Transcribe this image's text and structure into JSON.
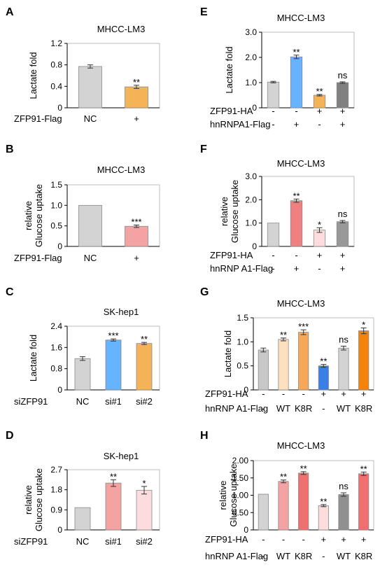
{
  "figure": {
    "panels": [
      {
        "letter": "A",
        "title": "MHCC-LM3",
        "ylabel": "Lactate fold",
        "rowlabels": [
          "ZFP91-Flag"
        ],
        "ticks": [
          "0",
          "0.4",
          "0.8",
          "1.2"
        ]
      },
      {
        "letter": "B",
        "title": "MHCC-LM3",
        "ylabel": "relative Glucose uptake",
        "rowlabels": [
          "ZFP91-Flag"
        ],
        "ticks": [
          "0",
          "0.5",
          "1.0",
          "1.5"
        ]
      },
      {
        "letter": "C",
        "title": "SK-hep1",
        "ylabel": "Lactate fold",
        "rowlabels": [
          "siZFP91"
        ],
        "ticks": [
          "0",
          "0.8",
          "1.6",
          "2.4"
        ]
      },
      {
        "letter": "D",
        "title": "SK-hep1",
        "ylabel": "relative Glucose uptake",
        "rowlabels": [
          "siZFP91"
        ],
        "ticks": [
          "0",
          "0.9",
          "1.8",
          "2.7"
        ]
      },
      {
        "letter": "E",
        "title": "MHCC-LM3",
        "ylabel": "Lactate fold",
        "rowlabels": [
          "ZFP91-HA",
          "hnRNPA1-Flag"
        ],
        "ticks": [
          "0",
          "1.0",
          "2.0",
          "3.0"
        ]
      },
      {
        "letter": "F",
        "title": "MHCC-LM3",
        "ylabel": "relative Glucose uptake",
        "rowlabels": [
          "ZFP91-HA",
          "hnRNP A1-Flag"
        ],
        "ticks": [
          "0",
          "1.0",
          "2.0",
          "3.0"
        ]
      },
      {
        "letter": "G",
        "title": "MHCC-LM3",
        "ylabel": "Lactate fold",
        "rowlabels": [
          "ZFP91-HA",
          "hnRNP A1-Flag"
        ],
        "ticks": [
          "0",
          "0.5",
          "1.0",
          "1.5"
        ]
      },
      {
        "letter": "H",
        "title": "MHCC-LM3",
        "ylabel": "relative Glucose uptake",
        "rowlabels": [
          "ZFP91-HA",
          "hnRNP A1-Flag"
        ],
        "ticks": [
          "0",
          "0.50",
          "1.00",
          "1.50",
          "2.00"
        ]
      }
    ]
  },
  "chart_data": [
    {
      "panel": "A",
      "type": "bar",
      "title": "MHCC-LM3",
      "ylabel": "Lactate fold",
      "ylim": [
        0,
        1.2
      ],
      "conditions": [
        [
          "NC",
          "+"
        ]
      ],
      "values": [
        0.77,
        0.39
      ],
      "errors": [
        0.03,
        0.03
      ],
      "significance": [
        "",
        "**"
      ],
      "colors": [
        "#d3d3d3",
        "#f5b358"
      ]
    },
    {
      "panel": "B",
      "type": "bar",
      "title": "MHCC-LM3",
      "ylabel": "relative Glucose uptake",
      "ylim": [
        0,
        1.5
      ],
      "conditions": [
        [
          "NC",
          "+"
        ]
      ],
      "values": [
        1.0,
        0.49
      ],
      "errors": [
        0,
        0.03
      ],
      "significance": [
        "",
        "***"
      ],
      "colors": [
        "#d3d3d3",
        "#f4a3a3"
      ]
    },
    {
      "panel": "C",
      "type": "bar",
      "title": "SK-hep1",
      "ylabel": "Lactate fold",
      "ylim": [
        0,
        2.4
      ],
      "conditions": [
        [
          "NC",
          "si#1",
          "si#2"
        ]
      ],
      "values": [
        1.18,
        1.88,
        1.75
      ],
      "errors": [
        0.07,
        0.04,
        0.04
      ],
      "significance": [
        "",
        "***",
        "**"
      ],
      "colors": [
        "#d3d3d3",
        "#66b3ff",
        "#f5b358"
      ]
    },
    {
      "panel": "D",
      "type": "bar",
      "title": "SK-hep1",
      "ylabel": "relative Glucose uptake",
      "ylim": [
        0,
        2.7
      ],
      "conditions": [
        [
          "NC",
          "si#1",
          "si#2"
        ]
      ],
      "values": [
        1.0,
        2.1,
        1.78
      ],
      "errors": [
        0,
        0.15,
        0.17
      ],
      "significance": [
        "",
        "**",
        "*"
      ],
      "colors": [
        "#d3d3d3",
        "#f4a3a3",
        "#fcdcdc"
      ]
    },
    {
      "panel": "E",
      "type": "bar",
      "title": "MHCC-LM3",
      "ylabel": "Lactate fold",
      "ylim": [
        0,
        3.0
      ],
      "conditions": [
        [
          "-",
          "-",
          "+",
          "+"
        ],
        [
          "-",
          "+",
          "-",
          "+"
        ]
      ],
      "values": [
        1.02,
        2.02,
        0.5,
        1.0
      ],
      "errors": [
        0.03,
        0.07,
        0.03,
        0.03
      ],
      "significance": [
        "",
        "**",
        "**",
        "ns"
      ],
      "colors": [
        "#d3d3d3",
        "#66b3ff",
        "#f5b358",
        "#808080"
      ]
    },
    {
      "panel": "F",
      "type": "bar",
      "title": "MHCC-LM3",
      "ylabel": "relative Glucose uptake",
      "ylim": [
        0,
        3.0
      ],
      "conditions": [
        [
          "-",
          "-",
          "+",
          "+"
        ],
        [
          "-",
          "+",
          "-",
          "+"
        ]
      ],
      "values": [
        1.0,
        1.96,
        0.7,
        1.06
      ],
      "errors": [
        0,
        0.07,
        0.1,
        0.05
      ],
      "significance": [
        "",
        "**",
        "*",
        "ns"
      ],
      "colors": [
        "#d3d3d3",
        "#f08080",
        "#fcdcdc",
        "#999999"
      ]
    },
    {
      "panel": "G",
      "type": "bar",
      "title": "MHCC-LM3",
      "ylabel": "Lactate fold",
      "ylim": [
        0,
        1.5
      ],
      "conditions": [
        [
          "-",
          "-",
          "-",
          "+",
          "+",
          "+"
        ],
        [
          "-",
          "WT",
          "K8R",
          "-",
          "WT",
          "K8R"
        ]
      ],
      "values": [
        0.83,
        1.05,
        1.2,
        0.5,
        0.87,
        1.23
      ],
      "errors": [
        0.04,
        0.03,
        0.05,
        0.03,
        0.04,
        0.06
      ],
      "significance": [
        "",
        "**",
        "***",
        "**",
        "ns",
        "*"
      ],
      "colors": [
        "#c8c8c8",
        "#fde0bd",
        "#f5a858",
        "#3a7fe6",
        "#d3d3d3",
        "#f5820a"
      ]
    },
    {
      "panel": "H",
      "type": "bar",
      "title": "MHCC-LM3",
      "ylabel": "relative Glucose uptake",
      "ylim": [
        0,
        2.0
      ],
      "conditions": [
        [
          "-",
          "-",
          "-",
          "+",
          "+",
          "+"
        ],
        [
          "-",
          "WT",
          "K8R",
          "-",
          "WT",
          "K8R"
        ]
      ],
      "values": [
        1.03,
        1.4,
        1.64,
        0.7,
        1.02,
        1.62
      ],
      "errors": [
        0,
        0.04,
        0.04,
        0.03,
        0.05,
        0.05
      ],
      "significance": [
        "",
        "**",
        "**",
        "**",
        "ns",
        "**"
      ],
      "colors": [
        "#d3d3d3",
        "#f4a3a3",
        "#f07070",
        "#fcdcdc",
        "#909090",
        "#f07070"
      ]
    }
  ]
}
